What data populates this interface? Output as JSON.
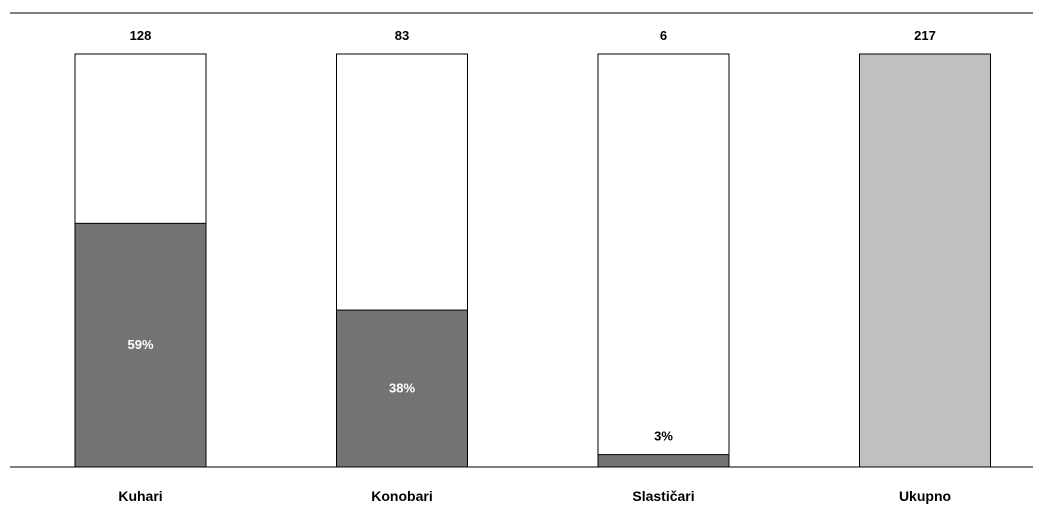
{
  "chart_data": {
    "type": "bar",
    "title": "",
    "xlabel": "",
    "ylabel": "",
    "categories": [
      "Kuhari",
      "Konobari",
      "Slastičari",
      "Ukupno"
    ],
    "totals": [
      128,
      83,
      6,
      217
    ],
    "total_labels": [
      "128",
      "83",
      "6",
      "217"
    ],
    "shares": [
      59,
      38,
      3,
      null
    ],
    "share_labels": [
      "59%",
      "38%",
      "3%",
      ""
    ],
    "ylim": [
      0,
      100
    ],
    "grid": false,
    "legend": "none",
    "colors": {
      "share_fill": "#737373",
      "total_fill": "#c0c0c0",
      "empty_fill": "#ffffff",
      "outline": "#000000",
      "share_text": "#ffffff",
      "outside_text": "#000000"
    }
  }
}
